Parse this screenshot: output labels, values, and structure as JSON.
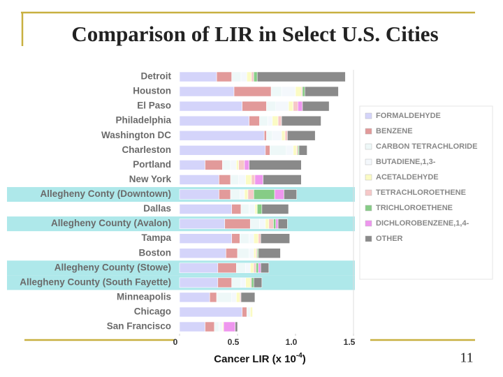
{
  "chart_data": {
    "type": "stacked-barh",
    "title": "Comparison of LIR in Select U.S. Cities",
    "xlabel": "Cancer LIR (x 10",
    "xlabel_exponent": "-4",
    "xlabel_end": ")",
    "page_number": "11",
    "categories": [
      "Detroit",
      "Houston",
      "El Paso",
      "Philadelphia",
      "Washington DC",
      "Charleston",
      "Portland",
      "New York",
      "Allegheny Conty (Downtown)",
      "Dallas",
      "Allegheny County (Avalon)",
      "Tampa",
      "Boston",
      "Allegheny County (Stowe)",
      "Allegheny County (South Fayette)",
      "Minneapolis",
      "Chicago",
      "San Francisco"
    ],
    "highlighted": [
      false,
      false,
      false,
      false,
      false,
      false,
      false,
      false,
      true,
      false,
      true,
      false,
      false,
      true,
      true,
      false,
      false,
      false
    ],
    "highlight_color": "#aee8ea",
    "series": [
      {
        "name": "FORMALDEHYDE",
        "color": "#d4d4fa",
        "values": [
          0.32,
          0.47,
          0.54,
          0.6,
          0.73,
          0.74,
          0.22,
          0.34,
          0.34,
          0.45,
          0.39,
          0.45,
          0.4,
          0.33,
          0.33,
          0.26,
          0.54,
          0.22
        ]
      },
      {
        "name": "BENZENE",
        "color": "#e29a9a",
        "values": [
          0.13,
          0.32,
          0.21,
          0.09,
          0.02,
          0.04,
          0.15,
          0.1,
          0.1,
          0.08,
          0.22,
          0.07,
          0.1,
          0.16,
          0.12,
          0.06,
          0.04,
          0.08
        ]
      },
      {
        "name": "CARBON TETRACHLORIDE",
        "color": "#eef8f8",
        "values": [
          0.08,
          0.09,
          0.08,
          0.07,
          0.05,
          0.14,
          0.07,
          0.07,
          0.08,
          0.07,
          0.08,
          0.08,
          0.1,
          0.08,
          0.08,
          0.13,
          0.03,
          0.04
        ]
      },
      {
        "name": "BUTADIENE,1,3-",
        "color": "#f4f8fc",
        "values": [
          0.05,
          0.12,
          0.11,
          0.04,
          0.08,
          0.06,
          0.05,
          0.06,
          0.04,
          0.05,
          0.05,
          0.04,
          0.04,
          0.04,
          0.04,
          0.04,
          0,
          0.03
        ]
      },
      {
        "name": "ACETALDEHYDE",
        "color": "#fbfbc4",
        "values": [
          0.04,
          0.05,
          0.04,
          0.05,
          0.03,
          0.03,
          0.02,
          0.05,
          0.03,
          0.02,
          0.03,
          0.04,
          0.02,
          0.03,
          0.04,
          0.03,
          0.02,
          0.01
        ]
      },
      {
        "name": "TETRACHLOROETHENE",
        "color": "#f6c8c8",
        "values": [
          0.02,
          0.01,
          0.04,
          0.03,
          0.02,
          0.01,
          0.05,
          0.03,
          0.05,
          0,
          0.04,
          0.02,
          0.01,
          0.02,
          0.01,
          0.01,
          0,
          0
        ]
      },
      {
        "name": "TRICHLOROETHENE",
        "color": "#86cc86",
        "values": [
          0.03,
          0.02,
          0,
          0,
          0,
          0.01,
          0,
          0,
          0.18,
          0.04,
          0.02,
          0,
          0.01,
          0.02,
          0.02,
          0,
          0,
          0
        ]
      },
      {
        "name": "DICHLOROBENZENE,1,4-",
        "color": "#ee96ee",
        "values": [
          0,
          0,
          0.04,
          0,
          0,
          0,
          0.04,
          0.07,
          0.08,
          0,
          0.02,
          0,
          0,
          0.02,
          0,
          0,
          0,
          0.1
        ]
      },
      {
        "name": "OTHER",
        "color": "#8a8a8a",
        "values": [
          0.76,
          0.29,
          0.23,
          0.34,
          0.24,
          0.07,
          0.45,
          0.33,
          0.11,
          0.23,
          0.08,
          0.25,
          0.19,
          0.07,
          0.07,
          0.12,
          0,
          0.02
        ]
      }
    ],
    "xlim": [
      0,
      1.5
    ],
    "xticks": [
      0,
      0.5,
      {
        "value": 1,
        "label": "1.0"
      },
      1.5
    ],
    "decor_color": "#c8b040"
  }
}
